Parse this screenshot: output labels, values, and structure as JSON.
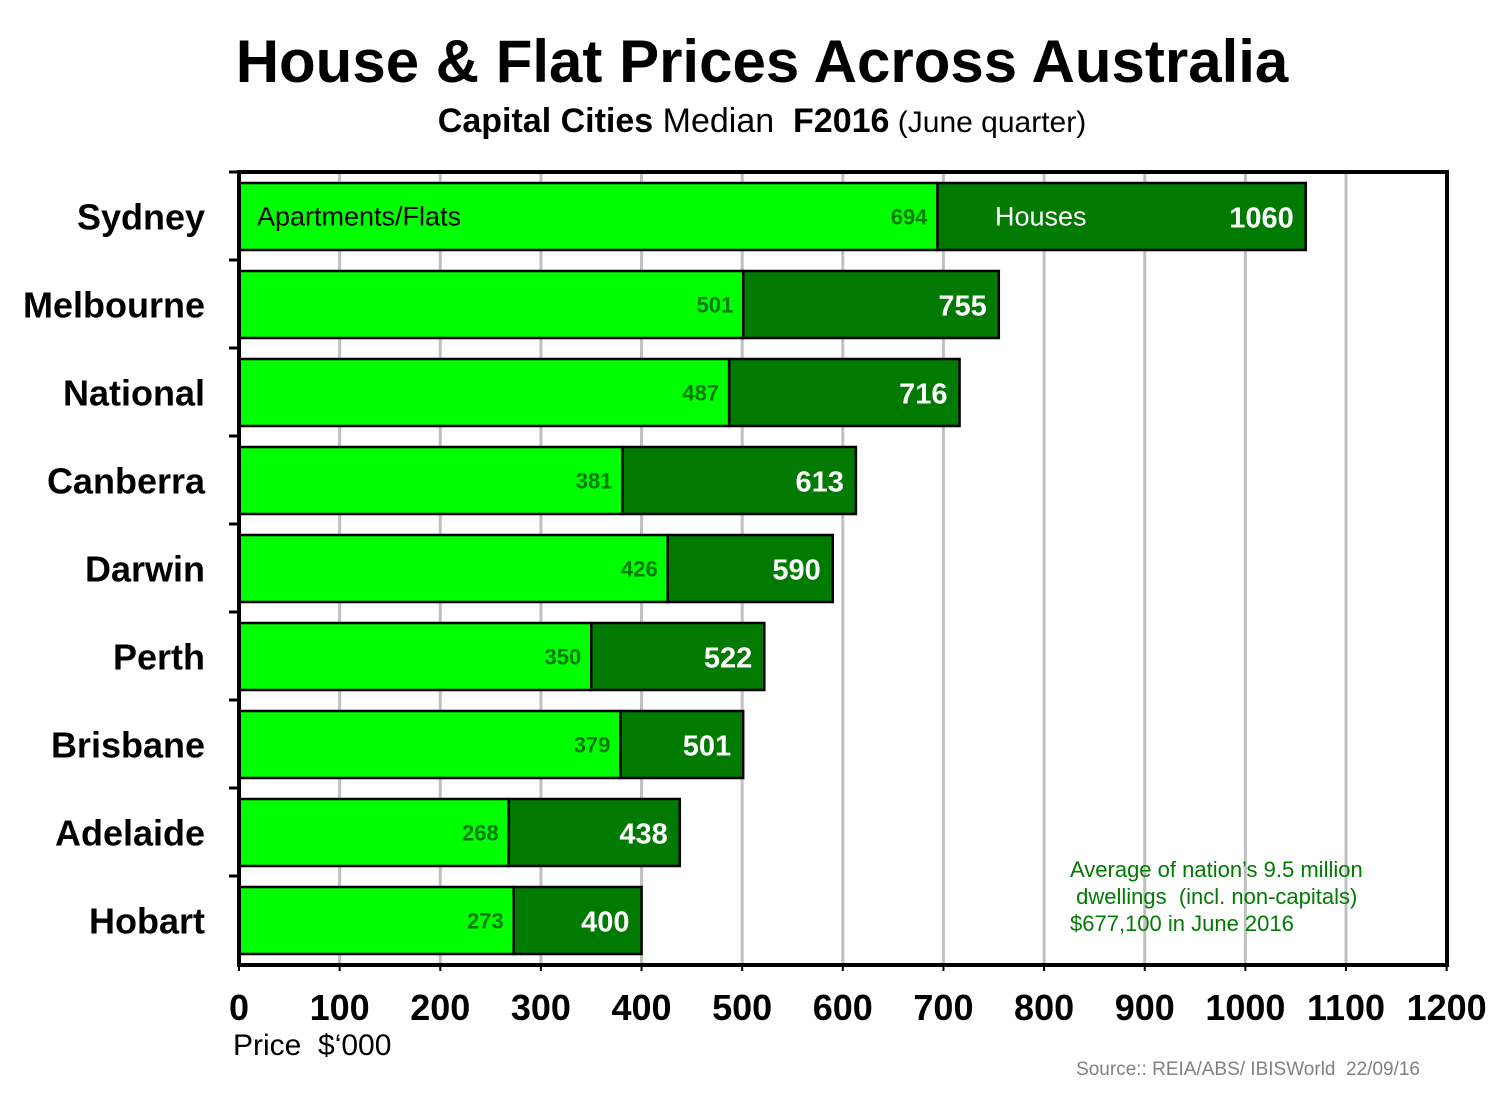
{
  "chart_data": {
    "type": "bar",
    "orientation": "horizontal",
    "title": "House & Flat Prices Across Australia",
    "subtitle_parts": [
      "Capital Cities",
      " Median  ",
      "F2016",
      " (June quarter)"
    ],
    "xlabel": "Price  $‘000",
    "ylabel": "",
    "xlim": [
      0,
      1200
    ],
    "xticks": [
      0,
      100,
      200,
      300,
      400,
      500,
      600,
      700,
      800,
      900,
      1000,
      1100,
      1200
    ],
    "grid": true,
    "categories": [
      "Sydney",
      "Melbourne",
      "National",
      "Canberra",
      "Darwin",
      "Perth",
      "Brisbane",
      "Adelaide",
      "Hobart"
    ],
    "series": [
      {
        "name": "Apartments/Flats",
        "color": "#00FF00",
        "label_color": "#007A00",
        "values": [
          694,
          501,
          487,
          381,
          426,
          350,
          379,
          268,
          273
        ]
      },
      {
        "name": "Houses",
        "color": "#007A00",
        "label_color": "#FFFFFF",
        "values": [
          1060,
          755,
          716,
          613,
          590,
          522,
          501,
          438,
          400
        ]
      }
    ],
    "annotation": [
      "Average of nation’s 9.5 million",
      " dwellings  (incl. non-capitals)",
      "$677,100 in June 2016"
    ],
    "annotation_color": "#007A00",
    "source": "Source:: REIA/ABS/ IBISWorld  22/09/16"
  }
}
